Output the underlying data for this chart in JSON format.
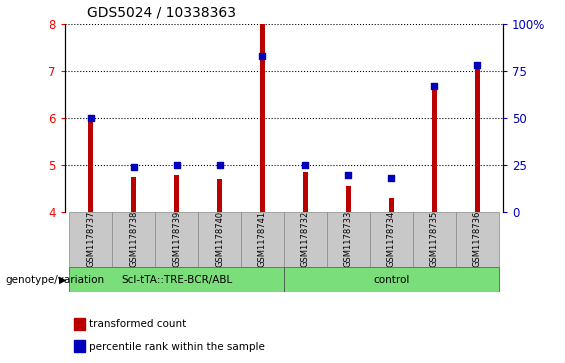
{
  "title": "GDS5024 / 10338363",
  "samples": [
    "GSM1178737",
    "GSM1178738",
    "GSM1178739",
    "GSM1178740",
    "GSM1178741",
    "GSM1178732",
    "GSM1178733",
    "GSM1178734",
    "GSM1178735",
    "GSM1178736"
  ],
  "red_values": [
    6.0,
    4.75,
    4.8,
    4.7,
    8.0,
    4.85,
    4.55,
    4.3,
    6.6,
    7.05
  ],
  "blue_pct": [
    50,
    24,
    25,
    25,
    83,
    25,
    20,
    18,
    67,
    78
  ],
  "ylim_left": [
    4,
    8
  ],
  "ylim_right": [
    0,
    100
  ],
  "yticks_left": [
    4,
    5,
    6,
    7,
    8
  ],
  "yticks_right": [
    0,
    25,
    50,
    75,
    100
  ],
  "group1_label": "Scl-tTA::TRE-BCR/ABL",
  "group2_label": "control",
  "group1_indices": [
    0,
    1,
    2,
    3,
    4
  ],
  "group2_indices": [
    5,
    6,
    7,
    8,
    9
  ],
  "red_color": "#bb0000",
  "blue_color": "#0000bb",
  "group_bg": "#7adf7a",
  "bar_bg": "#c8c8c8",
  "legend_red": "transformed count",
  "legend_blue": "percentile rank within the sample",
  "genotype_label": "genotype/variation",
  "bar_width": 0.12,
  "grid_yticks": [
    5,
    6,
    7,
    8
  ]
}
